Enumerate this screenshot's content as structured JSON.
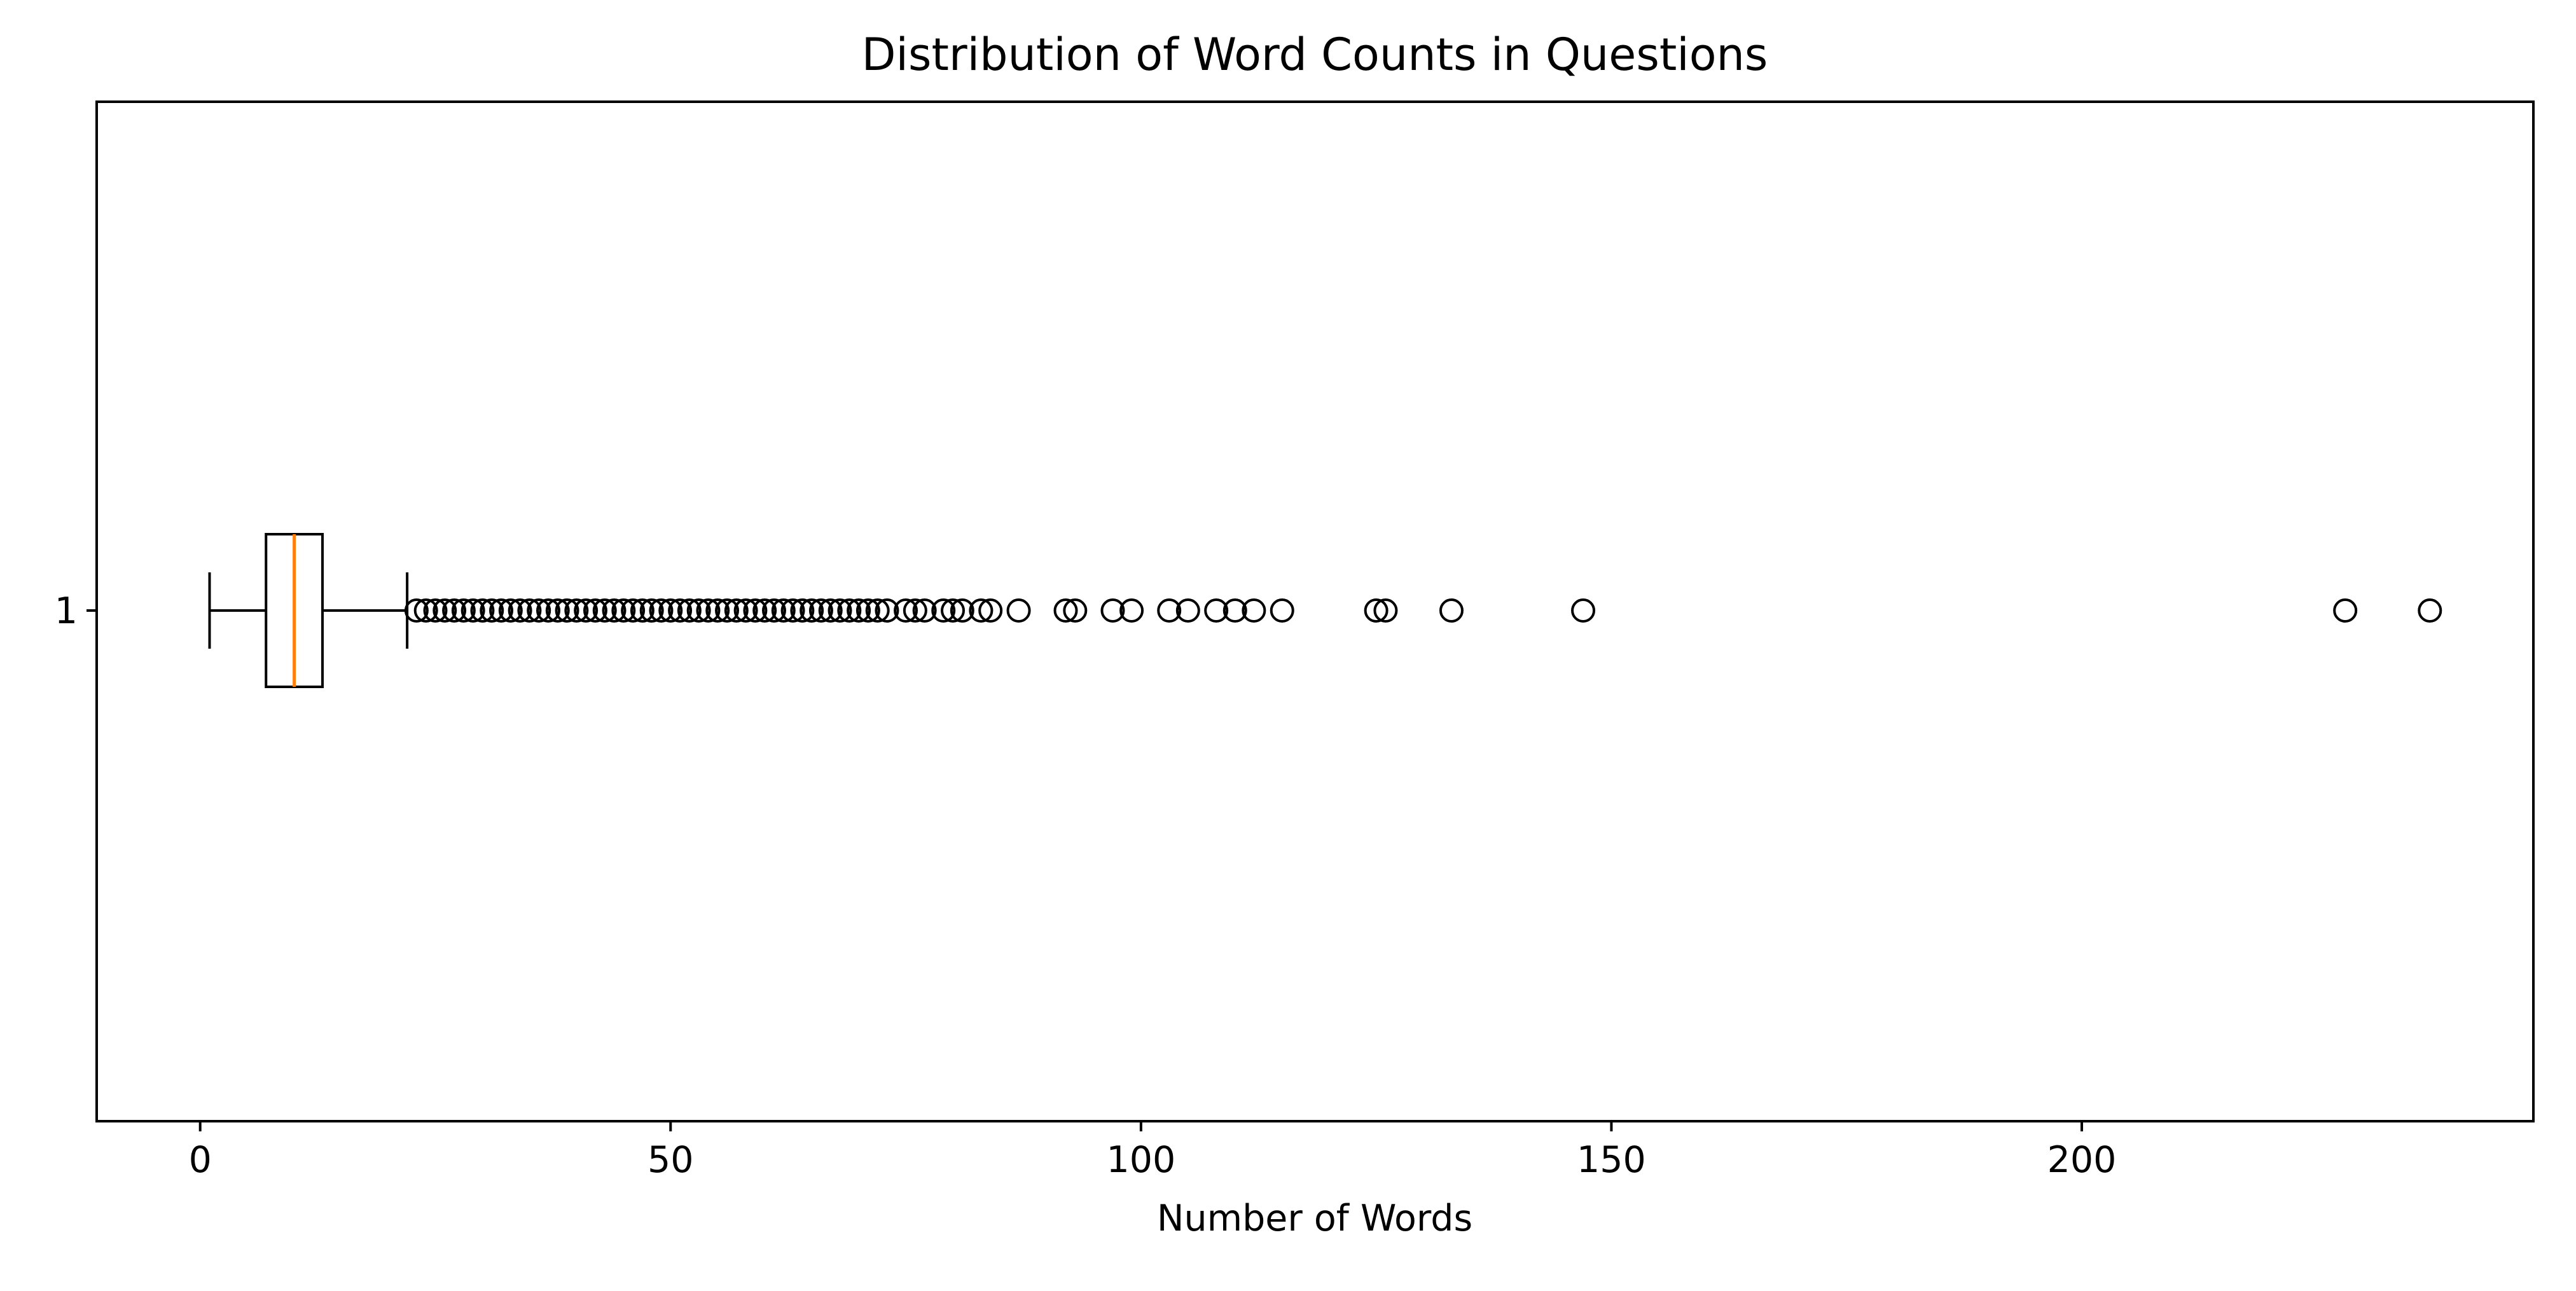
{
  "chart_data": {
    "type": "boxplot",
    "orientation": "horizontal",
    "title": "Distribution of Word Counts in Questions",
    "xlabel": "Number of Words",
    "ylabel": "",
    "xlim": [
      -11,
      248
    ],
    "x_ticks": [
      0,
      50,
      100,
      150,
      200
    ],
    "y_tick_labels": [
      "1"
    ],
    "grid": false,
    "legend": "none",
    "box": {
      "category": "1",
      "whisker_low": 1,
      "q1": 7,
      "median": 10,
      "q3": 13,
      "whisker_high": 22
    },
    "outliers": [
      23,
      24,
      25,
      26,
      27,
      28,
      29,
      30,
      31,
      32,
      33,
      34,
      35,
      36,
      37,
      38,
      39,
      40,
      41,
      42,
      43,
      44,
      45,
      46,
      47,
      48,
      49,
      50,
      51,
      52,
      53,
      54,
      55,
      56,
      57,
      58,
      59,
      60,
      61,
      62,
      63,
      64,
      65,
      66,
      67,
      68,
      69,
      70,
      71,
      72,
      73,
      75,
      76,
      77,
      79,
      80,
      81,
      83,
      84,
      87,
      92,
      93,
      97,
      99,
      103,
      105,
      108,
      110,
      112,
      115,
      125,
      126,
      133,
      147,
      228,
      237
    ],
    "colors": {
      "box": "#000000",
      "median": "#ff7f0e",
      "outlier_edge": "#000000"
    }
  }
}
